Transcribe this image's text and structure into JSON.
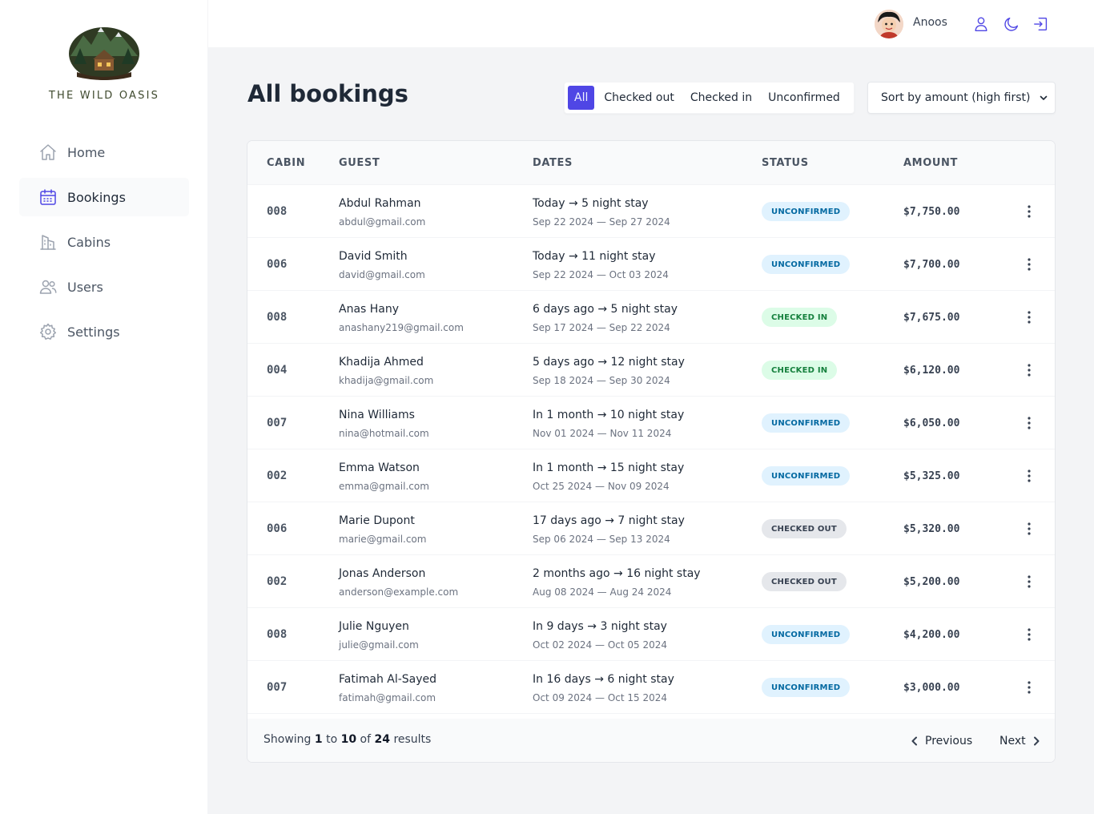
{
  "sidebar": {
    "brand": "THE WILD OASIS",
    "items": [
      {
        "label": "Home",
        "icon": "home-icon"
      },
      {
        "label": "Bookings",
        "icon": "calendar-icon"
      },
      {
        "label": "Cabins",
        "icon": "building-icon"
      },
      {
        "label": "Users",
        "icon": "users-icon"
      },
      {
        "label": "Settings",
        "icon": "gear-icon"
      }
    ],
    "active": "Bookings"
  },
  "header": {
    "username": "Anoos",
    "icons": [
      "user-icon",
      "moon-icon",
      "logout-icon"
    ]
  },
  "main": {
    "title": "All bookings",
    "filters": [
      "All",
      "Checked out",
      "Checked in",
      "Unconfirmed"
    ],
    "active_filter": "All",
    "sort": {
      "selected": "Sort by amount (high first)"
    }
  },
  "table": {
    "columns": [
      "CABIN",
      "GUEST",
      "DATES",
      "STATUS",
      "AMOUNT"
    ],
    "rows": [
      {
        "cabin": "008",
        "name": "Abdul Rahman",
        "email": "abdul@gmail.com",
        "when": "Today → 5 night stay",
        "range": "Sep 22 2024 — Sep 27 2024",
        "status": "UNCONFIRMED",
        "amount": "$7,750.00"
      },
      {
        "cabin": "006",
        "name": "David Smith",
        "email": "david@gmail.com",
        "when": "Today → 11 night stay",
        "range": "Sep 22 2024 — Oct 03 2024",
        "status": "UNCONFIRMED",
        "amount": "$7,700.00"
      },
      {
        "cabin": "008",
        "name": "Anas Hany",
        "email": "anashany219@gmail.com",
        "when": "6 days ago → 5 night stay",
        "range": "Sep 17 2024 — Sep 22 2024",
        "status": "CHECKED IN",
        "amount": "$7,675.00"
      },
      {
        "cabin": "004",
        "name": "Khadija Ahmed",
        "email": "khadija@gmail.com",
        "when": "5 days ago → 12 night stay",
        "range": "Sep 18 2024 — Sep 30 2024",
        "status": "CHECKED IN",
        "amount": "$6,120.00"
      },
      {
        "cabin": "007",
        "name": "Nina Williams",
        "email": "nina@hotmail.com",
        "when": "In 1 month → 10 night stay",
        "range": "Nov 01 2024 — Nov 11 2024",
        "status": "UNCONFIRMED",
        "amount": "$6,050.00"
      },
      {
        "cabin": "002",
        "name": "Emma Watson",
        "email": "emma@gmail.com",
        "when": "In 1 month → 15 night stay",
        "range": "Oct 25 2024 — Nov 09 2024",
        "status": "UNCONFIRMED",
        "amount": "$5,325.00"
      },
      {
        "cabin": "006",
        "name": "Marie Dupont",
        "email": "marie@gmail.com",
        "when": "17 days ago → 7 night stay",
        "range": "Sep 06 2024 — Sep 13 2024",
        "status": "CHECKED OUT",
        "amount": "$5,320.00"
      },
      {
        "cabin": "002",
        "name": "Jonas Anderson",
        "email": "anderson@example.com",
        "when": "2 months ago → 16 night stay",
        "range": "Aug 08 2024 — Aug 24 2024",
        "status": "CHECKED OUT",
        "amount": "$5,200.00"
      },
      {
        "cabin": "008",
        "name": "Julie Nguyen",
        "email": "julie@gmail.com",
        "when": "In 9 days → 3 night stay",
        "range": "Oct 02 2024 — Oct 05 2024",
        "status": "UNCONFIRMED",
        "amount": "$4,200.00"
      },
      {
        "cabin": "007",
        "name": "Fatimah Al-Sayed",
        "email": "fatimah@gmail.com",
        "when": "In 16 days → 6 night stay",
        "range": "Oct 09 2024 — Oct 15 2024",
        "status": "UNCONFIRMED",
        "amount": "$3,000.00"
      }
    ],
    "status_colors": {
      "UNCONFIRMED": {
        "bg": "#e0f2fe",
        "fg": "#0369a1"
      },
      "CHECKED IN": {
        "bg": "#dcfce7",
        "fg": "#15803d"
      },
      "CHECKED OUT": {
        "bg": "#e5e7eb",
        "fg": "#374151"
      }
    }
  },
  "pagination": {
    "showing_prefix": "Showing",
    "from": "1",
    "to_word": "to",
    "to": "10",
    "of_word": "of",
    "total": "24",
    "suffix": "results",
    "previous": "Previous",
    "next": "Next"
  },
  "colors": {
    "accent": "#4f46e5"
  }
}
